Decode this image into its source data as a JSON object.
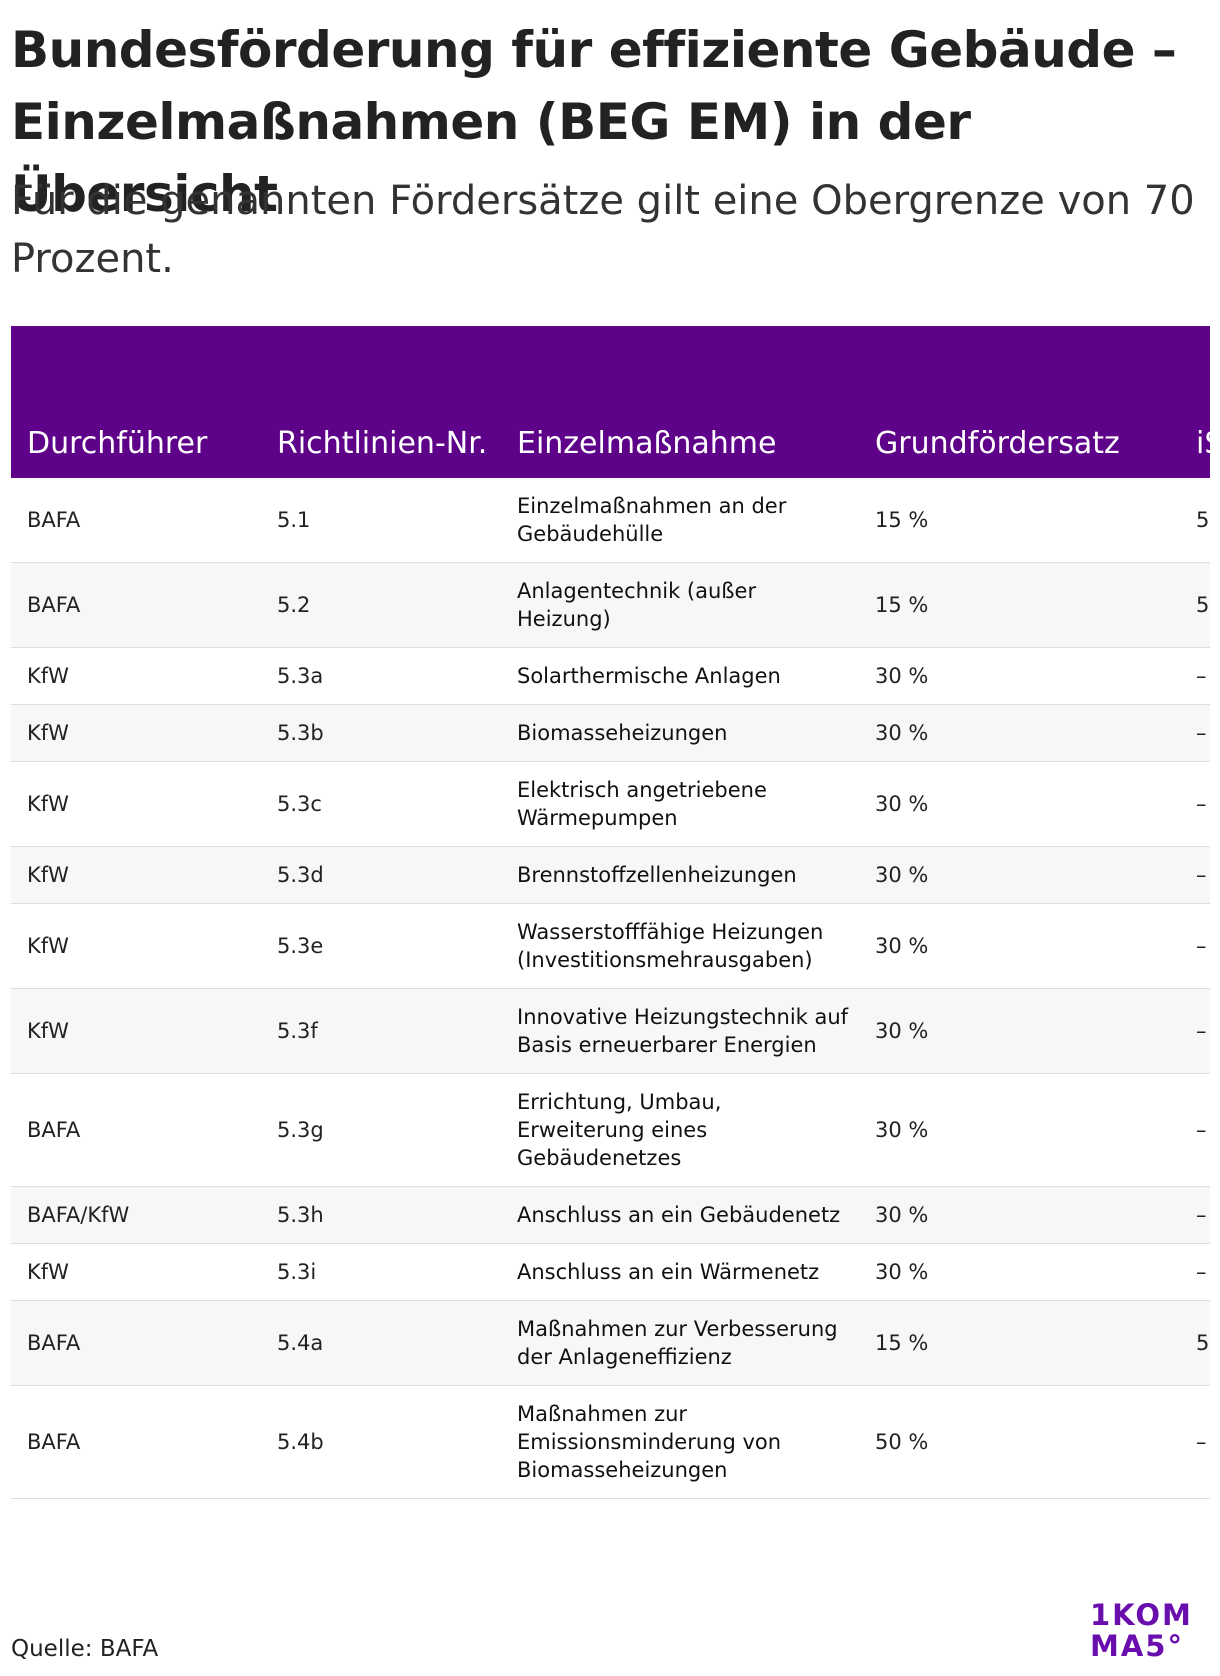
{
  "header": {
    "title": "Bundesförderung für effiziente Gebäude – Einzelmaßnahmen (BEG EM) in der Übersicht",
    "subtitle": "Für die genannten Fördersätze gilt eine Obergrenze von 70 Prozent."
  },
  "table": {
    "headers": [
      "Durchführer",
      "Richtlinien-Nr.",
      "Einzelmaßnahme",
      "Grundfördersatz",
      "iS B"
    ],
    "rows": [
      [
        "BAFA",
        "5.1",
        "Einzelmaßnahmen an der Gebäudehülle",
        "15 %",
        "5"
      ],
      [
        "BAFA",
        "5.2",
        "Anlagentechnik (außer Heizung)",
        "15 %",
        "5"
      ],
      [
        "KfW",
        "5.3a",
        "Solarthermische Anlagen",
        "30 %",
        "–"
      ],
      [
        "KfW",
        "5.3b",
        "Biomasseheizungen",
        "30 %",
        "–"
      ],
      [
        "KfW",
        "5.3c",
        "Elektrisch angetriebene Wärmepumpen",
        "30 %",
        "–"
      ],
      [
        "KfW",
        "5.3d",
        "Brennstoffzellenheizungen",
        "30 %",
        "–"
      ],
      [
        "KfW",
        "5.3e",
        "Wasserstofffähige Heizungen (Investitionsmehrausgaben)",
        "30 %",
        "–"
      ],
      [
        "KfW",
        "5.3f",
        "Innovative Heizungstechnik auf Basis erneuerbarer Energien",
        "30 %",
        "–"
      ],
      [
        "BAFA",
        "5.3g",
        "Errichtung, Umbau, Erweiterung eines Gebäudenetzes",
        "30 %",
        "–"
      ],
      [
        "BAFA/KfW",
        "5.3h",
        "Anschluss an ein Gebäudenetz",
        "30 %",
        "–"
      ],
      [
        "KfW",
        "5.3i",
        "Anschluss an ein Wärmenetz",
        "30 %",
        "–"
      ],
      [
        "BAFA",
        "5.4a",
        "Maßnahmen zur Verbesserung der Anlageneffizienz",
        "15 %",
        "5"
      ],
      [
        "BAFA",
        "5.4b",
        "Maßnahmen zur Emissionsminderung von Biomasseheizungen",
        "50 %",
        "–"
      ]
    ]
  },
  "footer": {
    "source": "Quelle: BAFA",
    "logo": [
      "1KOM",
      "MA5°"
    ]
  }
}
